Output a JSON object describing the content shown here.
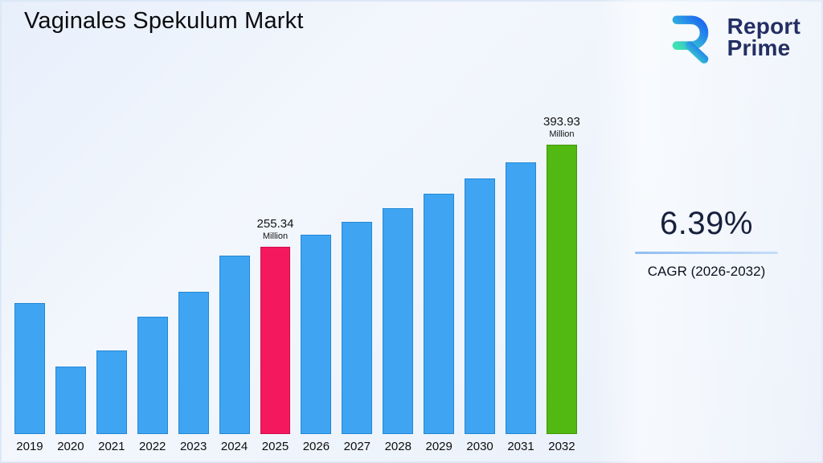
{
  "page": {
    "title": "Vaginales Spekulum Markt"
  },
  "logo": {
    "line1": "Report",
    "line2": "Prime",
    "mark_gradient_start": "#3fe0b4",
    "mark_gradient_end": "#1b63ef"
  },
  "cagr": {
    "value": "6.39%",
    "label": "CAGR (2026-2032)"
  },
  "chart_data": {
    "type": "bar",
    "title": "Vaginales Spekulum Markt",
    "unit": "Million",
    "categories": [
      "2019",
      "2020",
      "2021",
      "2022",
      "2023",
      "2024",
      "2025",
      "2026",
      "2027",
      "2028",
      "2029",
      "2030",
      "2031",
      "2032"
    ],
    "values": [
      178,
      92,
      114,
      160,
      194,
      243,
      255.34,
      271.6,
      289.0,
      307.4,
      327.1,
      348.0,
      370.3,
      393.93
    ],
    "ylim": [
      0,
      420
    ],
    "grid": false,
    "legend": "none",
    "annotations": [
      {
        "category": "2025",
        "value_label": "255.34",
        "unit": "Million"
      },
      {
        "category": "2032",
        "value_label": "393.93",
        "unit": "Million"
      }
    ],
    "bar_colors": {
      "default": {
        "fill": "#3fa5f2",
        "border": "#2388d6"
      },
      "2025": {
        "fill": "#f4195e",
        "border": "#cf0c4a"
      },
      "2032": {
        "fill": "#52b812",
        "border": "#41970b"
      }
    }
  }
}
